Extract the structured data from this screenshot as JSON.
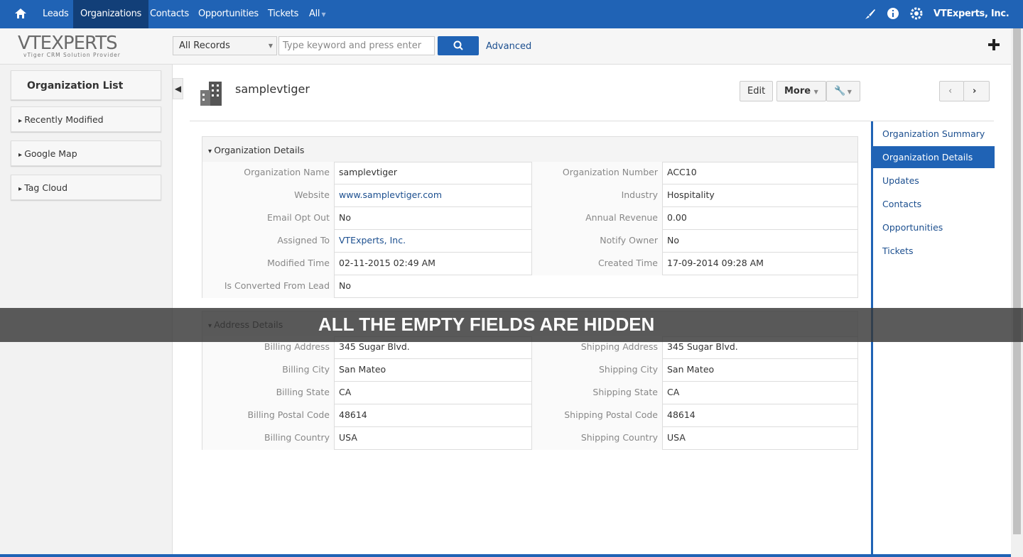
{
  "nav": {
    "items": [
      "Leads",
      "Organizations",
      "Contacts",
      "Opportunities",
      "Tickets",
      "All"
    ],
    "active": 1,
    "user": "VTExperts, Inc."
  },
  "logo": {
    "brand": "VTEXPERTS",
    "tagline": "vTiger CRM Solution Provider"
  },
  "search": {
    "scope": "All Records",
    "placeholder": "Type keyword and press enter",
    "advanced": "Advanced"
  },
  "sidebar": {
    "title": "Organization List",
    "items": [
      "Recently Modified",
      "Google Map",
      "Tag Cloud"
    ]
  },
  "record": {
    "name": "samplevtiger",
    "buttons": [
      "Edit",
      "More"
    ]
  },
  "related": {
    "items": [
      "Organization Summary",
      "Organization Details",
      "Updates",
      "Contacts",
      "Opportunities",
      "Tickets"
    ],
    "active": 1
  },
  "blocks": [
    {
      "title": "Organization Details",
      "fields": [
        {
          "label": "Organization Name",
          "value": "samplevtiger"
        },
        {
          "label": "Organization Number",
          "value": "ACC10"
        },
        {
          "label": "Website",
          "value": "www.samplevtiger.com",
          "link": true
        },
        {
          "label": "Industry",
          "value": "Hospitality"
        },
        {
          "label": "Email Opt Out",
          "value": "No"
        },
        {
          "label": "Annual Revenue",
          "value": "0.00"
        },
        {
          "label": "Assigned To",
          "value": "VTExperts, Inc.",
          "link": true
        },
        {
          "label": "Notify Owner",
          "value": "No"
        },
        {
          "label": "Modified Time",
          "value": "02-11-2015 02:49 AM"
        },
        {
          "label": "Created Time",
          "value": "17-09-2014 09:28 AM"
        },
        {
          "label": "Is Converted From Lead",
          "value": "No"
        }
      ]
    },
    {
      "title": "Address Details",
      "fields": [
        {
          "label": "Billing Address",
          "value": "345 Sugar Blvd."
        },
        {
          "label": "Shipping Address",
          "value": "345 Sugar Blvd."
        },
        {
          "label": "Billing City",
          "value": "San Mateo"
        },
        {
          "label": "Shipping City",
          "value": "San Mateo"
        },
        {
          "label": "Billing State",
          "value": "CA"
        },
        {
          "label": "Shipping State",
          "value": "CA"
        },
        {
          "label": "Billing Postal Code",
          "value": "48614"
        },
        {
          "label": "Shipping Postal Code",
          "value": "48614"
        },
        {
          "label": "Billing Country",
          "value": "USA"
        },
        {
          "label": "Shipping Country",
          "value": "USA"
        }
      ]
    }
  ],
  "banner": "ALL THE EMPTY FIELDS ARE HIDDEN"
}
